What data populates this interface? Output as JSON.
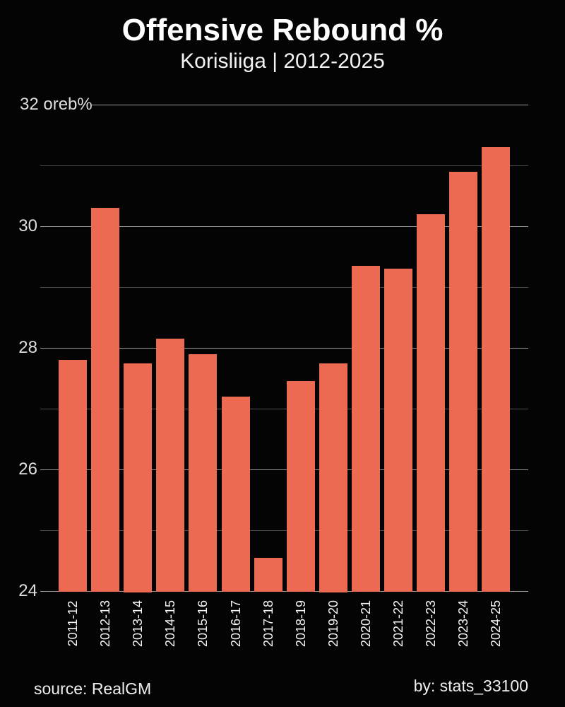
{
  "header": {
    "title": "Offensive Rebound %",
    "subtitle": "Korisliiga | 2012-2025"
  },
  "footer": {
    "source": "source: RealGM",
    "author": "by: stats_33100"
  },
  "colors": {
    "background": "#040404",
    "bar": "#ec6a52",
    "grid_major": "#9a9a9a",
    "grid_minor": "#4f4f4f",
    "text": "#ffffff"
  },
  "chart_data": {
    "type": "bar",
    "title": "Offensive Rebound %",
    "subtitle": "Korisliiga | 2012-2025",
    "categories": [
      "2011-12",
      "2012-13",
      "2013-14",
      "2014-15",
      "2015-16",
      "2016-17",
      "2017-18",
      "2018-19",
      "2019-20",
      "2020-21",
      "2021-22",
      "2022-23",
      "2023-24",
      "2024-25"
    ],
    "values": [
      27.8,
      30.3,
      27.75,
      28.15,
      27.9,
      27.2,
      24.55,
      27.45,
      27.75,
      29.35,
      29.3,
      30.2,
      30.9,
      31.3
    ],
    "xlabel": "",
    "ylabel": "oreb%",
    "ylim": [
      24,
      32
    ],
    "yticks_labeled": [
      24,
      26,
      28,
      30,
      32
    ],
    "yticks_minor": [
      25,
      27,
      29,
      31
    ],
    "ytick_top_label": "32 oreb%",
    "grid": "on",
    "legend": "none",
    "bar_color": "#ec6a52"
  }
}
